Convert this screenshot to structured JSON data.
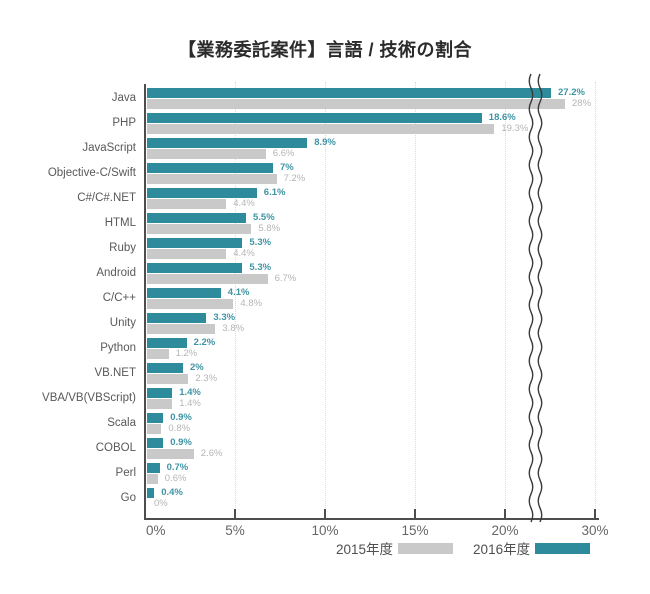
{
  "title": "【業務委託案件】言語 / 技術の割合",
  "colors": {
    "series_2016": "#2e8b9b",
    "series_2015": "#c9c9c9",
    "value_label_2016": "#3f94a4",
    "value_label_2015": "#b5b5b5",
    "axis": "#4d4d4d"
  },
  "legend": [
    {
      "label": "2015年度",
      "color": "#c9c9c9"
    },
    {
      "label": "2016年度",
      "color": "#2e8b9b"
    }
  ],
  "chart_data": {
    "type": "bar",
    "orientation": "horizontal",
    "title": "【業務委託案件】言語 / 技術の割合",
    "categories": [
      "Java",
      "PHP",
      "JavaScript",
      "Objective-C/Swift",
      "C#/C#.NET",
      "HTML",
      "Ruby",
      "Android",
      "C/C++",
      "Unity",
      "Python",
      "VB.NET",
      "VBA/VB(VBScript)",
      "Scala",
      "COBOL",
      "Perl",
      "Go"
    ],
    "series": [
      {
        "name": "2016年度",
        "color": "#2e8b9b",
        "values": [
          27.2,
          18.6,
          8.9,
          7,
          6.1,
          5.5,
          5.3,
          5.3,
          4.1,
          3.3,
          2.2,
          2,
          1.4,
          0.9,
          0.9,
          0.7,
          0.4
        ],
        "labels": [
          "27.2%",
          "18.6%",
          "8.9%",
          "7%",
          "6.1%",
          "5.5%",
          "5.3%",
          "5.3%",
          "4.1%",
          "3.3%",
          "2.2%",
          "2%",
          "1.4%",
          "0.9%",
          "0.9%",
          "0.7%",
          "0.4%"
        ]
      },
      {
        "name": "2015年度",
        "color": "#c9c9c9",
        "values": [
          28,
          19.3,
          6.6,
          7.2,
          4.4,
          5.8,
          4.4,
          6.7,
          4.8,
          3.8,
          1.2,
          2.3,
          1.4,
          0.8,
          2.6,
          0.6,
          0
        ],
        "labels": [
          "28%",
          "19.3%",
          "6.6%",
          "7.2%",
          "4.4%",
          "5.8%",
          "4.4%",
          "6.7%",
          "4.8%",
          "3.8%",
          "1.2%",
          "2.3%",
          "1.4%",
          "0.8%",
          "2.6%",
          "0.6%",
          "0%"
        ]
      }
    ],
    "x_axis": {
      "tick_labels": [
        "0%",
        "5%",
        "10%",
        "15%",
        "20%",
        "30%"
      ],
      "tick_values": [
        0,
        5,
        10,
        15,
        20,
        30
      ],
      "axis_break_between": [
        20,
        30
      ],
      "unit": "percent"
    },
    "grid": "vertical-dotted",
    "legend_position": "bottom-right"
  }
}
